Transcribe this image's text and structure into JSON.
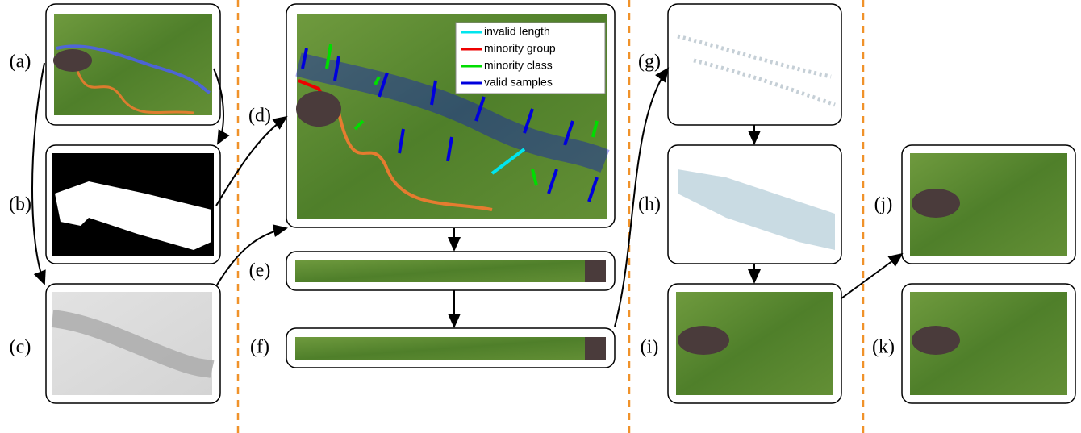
{
  "panels": [
    {
      "label": "(a)"
    },
    {
      "label": "(b)"
    },
    {
      "label": "(c)"
    },
    {
      "label": "(d)"
    },
    {
      "label": "(e)"
    },
    {
      "label": "(f)"
    },
    {
      "label": "(g)"
    },
    {
      "label": "(h)"
    },
    {
      "label": "(i)"
    },
    {
      "label": "(j)"
    },
    {
      "label": "(k)"
    }
  ],
  "legend": [
    {
      "name": "invalid length",
      "color": "#00e5ee"
    },
    {
      "name": "minority group",
      "color": "#ee0000"
    },
    {
      "name": "minority class",
      "color": "#00dd00"
    },
    {
      "name": "valid samples",
      "color": "#0000dd"
    }
  ]
}
